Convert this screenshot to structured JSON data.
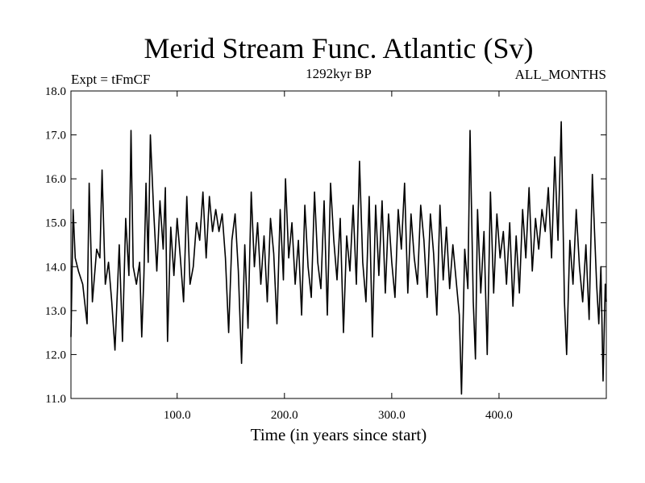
{
  "chart_data": {
    "type": "line",
    "title": "Merid Stream Func. Atlantic (Sv)",
    "subtitle_left": "Expt = tFmCF",
    "subtitle_center": "1292kyr BP",
    "subtitle_right": "ALL_MONTHS",
    "xlabel": "Time (in years since start)",
    "ylabel": "",
    "xlim": [
      1,
      500
    ],
    "ylim": [
      11.0,
      18.0
    ],
    "x_ticks": [
      100,
      200,
      300,
      400
    ],
    "x_tick_labels": [
      "100.0",
      "200.0",
      "300.0",
      "400.0"
    ],
    "y_ticks": [
      11,
      12,
      13,
      14,
      15,
      16,
      17,
      18
    ],
    "y_tick_labels": [
      "11.0",
      "12.0",
      "13.0",
      "14.0",
      "15.0",
      "16.0",
      "17.0",
      "18.0"
    ],
    "series": [
      {
        "name": "Merid Stream Func. Atlantic",
        "color": "#000000",
        "keypoints": [
          [
            1,
            12.4
          ],
          [
            3,
            15.3
          ],
          [
            5,
            14.2
          ],
          [
            8,
            13.9
          ],
          [
            12,
            13.6
          ],
          [
            16,
            12.7
          ],
          [
            18,
            15.9
          ],
          [
            21,
            13.2
          ],
          [
            25,
            14.4
          ],
          [
            28,
            14.2
          ],
          [
            30,
            16.2
          ],
          [
            33,
            13.6
          ],
          [
            36,
            14.1
          ],
          [
            39,
            13.2
          ],
          [
            42,
            12.1
          ],
          [
            46,
            14.5
          ],
          [
            49,
            12.3
          ],
          [
            52,
            15.1
          ],
          [
            55,
            13.8
          ],
          [
            57,
            17.1
          ],
          [
            59,
            14.0
          ],
          [
            62,
            13.6
          ],
          [
            65,
            14.1
          ],
          [
            67,
            12.4
          ],
          [
            69,
            13.8
          ],
          [
            71,
            15.9
          ],
          [
            73,
            14.1
          ],
          [
            75,
            17.0
          ],
          [
            78,
            15.3
          ],
          [
            81,
            13.9
          ],
          [
            84,
            15.5
          ],
          [
            87,
            14.4
          ],
          [
            89,
            15.8
          ],
          [
            91,
            12.3
          ],
          [
            94,
            14.9
          ],
          [
            97,
            13.8
          ],
          [
            100,
            15.1
          ],
          [
            103,
            14.2
          ],
          [
            106,
            13.2
          ],
          [
            109,
            15.6
          ],
          [
            112,
            13.6
          ],
          [
            115,
            14.0
          ],
          [
            118,
            15.0
          ],
          [
            121,
            14.6
          ],
          [
            124,
            15.7
          ],
          [
            127,
            14.2
          ],
          [
            130,
            15.6
          ],
          [
            133,
            14.8
          ],
          [
            136,
            15.3
          ],
          [
            139,
            14.8
          ],
          [
            142,
            15.2
          ],
          [
            145,
            14.2
          ],
          [
            148,
            12.5
          ],
          [
            151,
            14.6
          ],
          [
            154,
            15.2
          ],
          [
            157,
            13.9
          ],
          [
            160,
            11.8
          ],
          [
            163,
            14.5
          ],
          [
            166,
            12.6
          ],
          [
            169,
            15.7
          ],
          [
            172,
            14.0
          ],
          [
            175,
            15.0
          ],
          [
            178,
            13.6
          ],
          [
            181,
            14.7
          ],
          [
            184,
            13.2
          ],
          [
            187,
            15.1
          ],
          [
            190,
            14.3
          ],
          [
            193,
            12.7
          ],
          [
            196,
            15.3
          ],
          [
            199,
            13.7
          ],
          [
            201,
            16.0
          ],
          [
            204,
            14.2
          ],
          [
            207,
            15.0
          ],
          [
            210,
            13.6
          ],
          [
            213,
            14.6
          ],
          [
            216,
            12.9
          ],
          [
            219,
            15.4
          ],
          [
            222,
            14.0
          ],
          [
            225,
            13.3
          ],
          [
            228,
            15.7
          ],
          [
            231,
            14.1
          ],
          [
            234,
            13.5
          ],
          [
            237,
            15.5
          ],
          [
            240,
            12.9
          ],
          [
            243,
            15.9
          ],
          [
            246,
            14.6
          ],
          [
            249,
            13.7
          ],
          [
            252,
            15.1
          ],
          [
            255,
            12.5
          ],
          [
            258,
            14.7
          ],
          [
            261,
            13.9
          ],
          [
            264,
            15.4
          ],
          [
            267,
            13.6
          ],
          [
            270,
            16.4
          ],
          [
            273,
            14.1
          ],
          [
            276,
            13.2
          ],
          [
            279,
            15.6
          ],
          [
            282,
            12.4
          ],
          [
            285,
            15.4
          ],
          [
            288,
            13.8
          ],
          [
            291,
            15.5
          ],
          [
            294,
            13.4
          ],
          [
            297,
            15.2
          ],
          [
            300,
            14.1
          ],
          [
            303,
            13.3
          ],
          [
            306,
            15.3
          ],
          [
            309,
            14.4
          ],
          [
            312,
            15.9
          ],
          [
            315,
            13.4
          ],
          [
            318,
            15.2
          ],
          [
            321,
            14.2
          ],
          [
            324,
            13.6
          ],
          [
            327,
            15.4
          ],
          [
            330,
            14.6
          ],
          [
            333,
            13.3
          ],
          [
            336,
            15.2
          ],
          [
            339,
            14.3
          ],
          [
            342,
            12.9
          ],
          [
            345,
            15.4
          ],
          [
            348,
            13.7
          ],
          [
            351,
            14.9
          ],
          [
            354,
            13.5
          ],
          [
            357,
            14.5
          ],
          [
            360,
            13.7
          ],
          [
            363,
            12.9
          ],
          [
            365,
            11.1
          ],
          [
            368,
            14.4
          ],
          [
            371,
            13.5
          ],
          [
            373,
            17.1
          ],
          [
            376,
            13.2
          ],
          [
            378,
            11.9
          ],
          [
            380,
            15.3
          ],
          [
            383,
            13.4
          ],
          [
            386,
            14.8
          ],
          [
            389,
            12.0
          ],
          [
            392,
            15.7
          ],
          [
            395,
            13.4
          ],
          [
            398,
            15.2
          ],
          [
            401,
            14.2
          ],
          [
            404,
            14.8
          ],
          [
            407,
            13.6
          ],
          [
            410,
            15.0
          ],
          [
            413,
            13.1
          ],
          [
            416,
            14.7
          ],
          [
            419,
            13.4
          ],
          [
            422,
            15.3
          ],
          [
            425,
            14.2
          ],
          [
            428,
            15.8
          ],
          [
            431,
            13.9
          ],
          [
            434,
            15.1
          ],
          [
            437,
            14.4
          ],
          [
            440,
            15.3
          ],
          [
            443,
            14.8
          ],
          [
            446,
            15.8
          ],
          [
            449,
            14.2
          ],
          [
            452,
            16.5
          ],
          [
            455,
            14.6
          ],
          [
            458,
            17.3
          ],
          [
            461,
            13.2
          ],
          [
            463,
            12.0
          ],
          [
            466,
            14.6
          ],
          [
            469,
            13.6
          ],
          [
            472,
            15.3
          ],
          [
            475,
            14.0
          ],
          [
            478,
            13.2
          ],
          [
            481,
            14.5
          ],
          [
            484,
            12.8
          ],
          [
            487,
            16.1
          ],
          [
            489,
            14.8
          ],
          [
            491,
            13.6
          ],
          [
            493,
            12.7
          ],
          [
            495,
            14.0
          ],
          [
            497,
            11.4
          ],
          [
            499,
            13.6
          ],
          [
            500,
            13.2
          ]
        ]
      }
    ]
  }
}
